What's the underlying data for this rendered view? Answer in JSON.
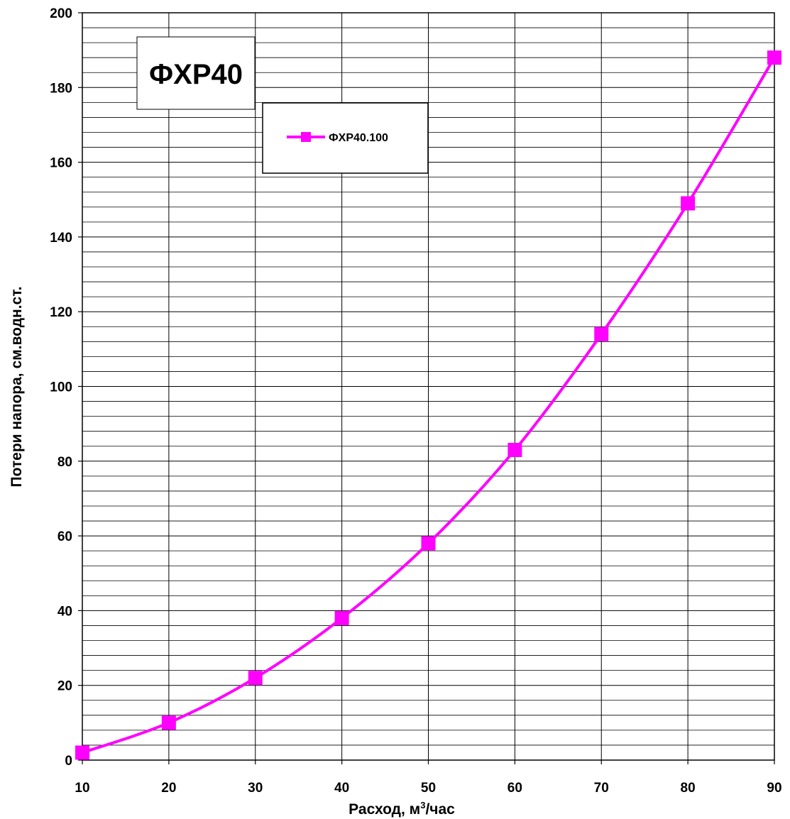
{
  "chart_data": {
    "type": "line",
    "title": "ФХР40",
    "xlabel_main": "Расход, м",
    "xlabel_sup": "3",
    "xlabel_tail": "/час",
    "ylabel": "Потери напора, см.водн.ст.",
    "x": [
      10,
      20,
      30,
      40,
      50,
      60,
      70,
      80,
      90
    ],
    "series": [
      {
        "name": "ФХР40.100",
        "color": "#ff00ff",
        "marker": "square",
        "values": [
          2,
          10,
          22,
          38,
          58,
          83,
          114,
          149,
          188
        ]
      }
    ],
    "xlim": [
      10,
      90
    ],
    "ylim": [
      0,
      200
    ],
    "x_ticks": [
      "10",
      "20",
      "30",
      "40",
      "50",
      "60",
      "70",
      "80",
      "90"
    ],
    "y_ticks": [
      "0",
      "20",
      "40",
      "60",
      "80",
      "100",
      "120",
      "140",
      "160",
      "180",
      "200"
    ],
    "grid": true,
    "legend_position": "top-center",
    "line_style": "smooth"
  }
}
